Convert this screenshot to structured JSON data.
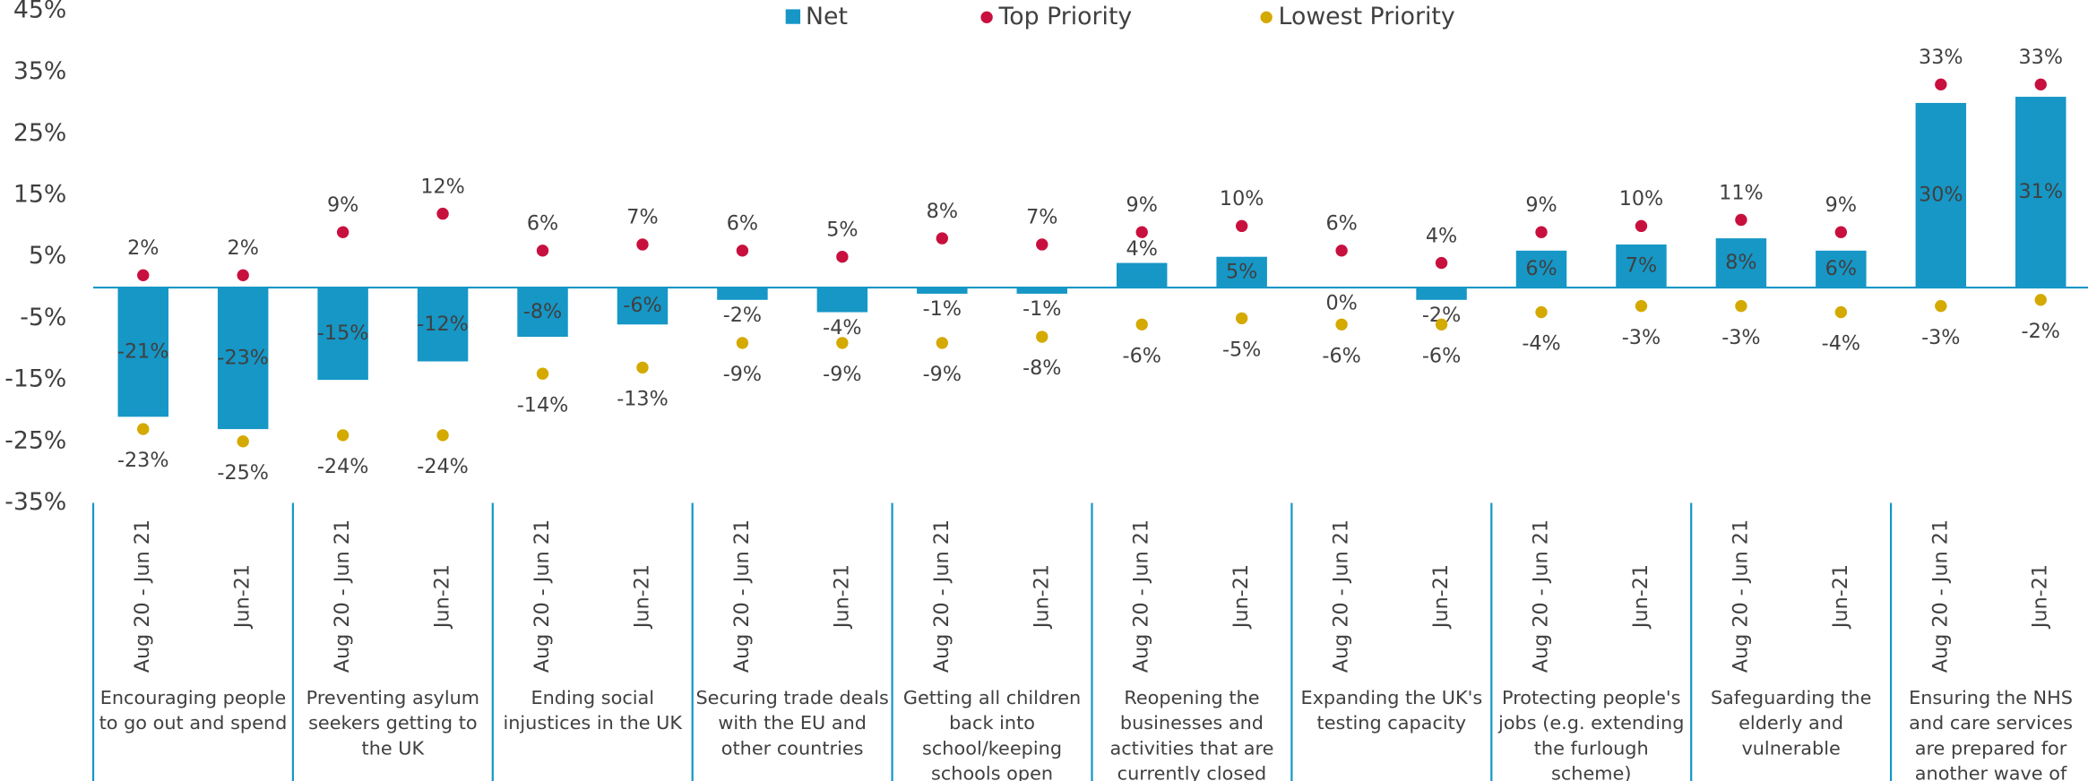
{
  "chart_data": {
    "type": "bar-dot",
    "legend": {
      "position": "top"
    },
    "groups": [
      "Encouraging people to go out and spend",
      "Preventing asylum seekers getting to the UK",
      "Ending social injustices in the UK",
      "Securing trade deals with the EU and other countries",
      "Getting all children back into school/keeping schools open",
      "Reopening the businesses and activities that are currently closed",
      "Expanding the UK's testing capacity",
      "Protecting people's jobs (e.g. extending the furlough scheme)",
      "Safeguarding the elderly and vulnerable",
      "Ensuring the NHS and care services are prepared for another wave of Coronavirus"
    ],
    "categories": [
      "Aug 20 - Jun 21",
      "Jun-21",
      "Aug 20 - Jun 21",
      "Jun-21",
      "Aug 20 - Jun 21",
      "Jun-21",
      "Aug 20 - Jun 21",
      "Jun-21",
      "Aug 20 - Jun 21",
      "Jun-21",
      "Aug 20 - Jun 21",
      "Jun-21",
      "Aug 20 - Jun 21",
      "Jun-21",
      "Aug 20 - Jun 21",
      "Jun-21",
      "Aug 20 - Jun 21",
      "Jun-21",
      "Aug 20 - Jun 21",
      "Jun-21"
    ],
    "series": [
      {
        "name": "Net",
        "mark": "bar",
        "color": "#1697c6",
        "values": [
          -21,
          -23,
          -15,
          -12,
          -8,
          -6,
          -2,
          -4,
          -1,
          -1,
          4,
          5,
          0,
          -2,
          6,
          7,
          8,
          6,
          30,
          31
        ],
        "value_labels": [
          "-21%",
          "-23%",
          "-15%",
          "-12%",
          "-8%",
          "-6%",
          "-2%",
          "-4%",
          "-1%",
          "-1%",
          "4%",
          "5%",
          "0%",
          "-2%",
          "6%",
          "7%",
          "8%",
          "6%",
          "30%",
          "31%"
        ]
      },
      {
        "name": "Top Priority",
        "mark": "dot",
        "color": "#c8103e",
        "values": [
          2,
          2,
          9,
          12,
          6,
          7,
          6,
          5,
          8,
          7,
          9,
          10,
          6,
          4,
          9,
          10,
          11,
          9,
          33,
          33
        ],
        "value_labels": [
          "2%",
          "2%",
          "9%",
          "12%",
          "6%",
          "7%",
          "6%",
          "5%",
          "8%",
          "7%",
          "9%",
          "10%",
          "6%",
          "4%",
          "9%",
          "10%",
          "11%",
          "9%",
          "33%",
          "33%"
        ]
      },
      {
        "name": "Lowest Priority",
        "mark": "dot",
        "color": "#d4a900",
        "values": [
          -23,
          -25,
          -24,
          -24,
          -14,
          -13,
          -9,
          -9,
          -9,
          -8,
          -6,
          -5,
          -6,
          -6,
          -4,
          -3,
          -3,
          -4,
          -3,
          -2
        ],
        "value_labels": [
          "-23%",
          "-25%",
          "-24%",
          "-24%",
          "-14%",
          "-13%",
          "-9%",
          "-9%",
          "-9%",
          "-8%",
          "-6%",
          "-5%",
          "-6%",
          "-6%",
          "-4%",
          "-3%",
          "-3%",
          "-4%",
          "-3%",
          "-2%"
        ]
      }
    ],
    "ylim": [
      -35,
      45
    ],
    "yticks": [
      {
        "value": 45,
        "label": "45%"
      },
      {
        "value": 35,
        "label": "35%"
      },
      {
        "value": 25,
        "label": "25%"
      },
      {
        "value": 15,
        "label": "15%"
      },
      {
        "value": 5,
        "label": "5%"
      },
      {
        "value": -5,
        "label": "-5%"
      },
      {
        "value": -15,
        "label": "-15%"
      },
      {
        "value": -25,
        "label": "-25%"
      },
      {
        "value": -35,
        "label": "-35%"
      }
    ],
    "grid": false
  }
}
